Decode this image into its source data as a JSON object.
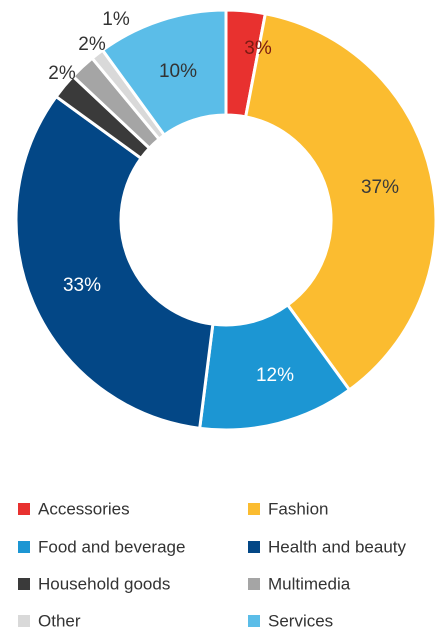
{
  "chart_data": {
    "type": "pie",
    "variant": "donut",
    "categories": [
      "Accessories",
      "Fashion",
      "Food and beverage",
      "Health and beauty",
      "Household goods",
      "Multimedia",
      "Other",
      "Services"
    ],
    "slice_order": [
      "Accessories",
      "Fashion",
      "Food and beverage",
      "Health and beauty",
      "Household goods",
      "Multimedia",
      "Other",
      "Services"
    ],
    "values": [
      3,
      37,
      12,
      33,
      2,
      2,
      1,
      10
    ],
    "value_labels": [
      "3%",
      "37%",
      "12%",
      "33%",
      "2%",
      "2%",
      "1%",
      "10%"
    ],
    "colors": [
      "#e8312f",
      "#fbbc30",
      "#1c96d3",
      "#034786",
      "#3a3a3a",
      "#a5a5a5",
      "#d9d9d9",
      "#5bbde8"
    ],
    "label_colors": [
      "#7a1a12",
      "#3a3a3a",
      "#ffffff",
      "#ffffff",
      "#333333",
      "#333333",
      "#333333",
      "#333333"
    ],
    "legend": {
      "position": "bottom",
      "columns": 2,
      "entries": [
        "Accessories",
        "Fashion",
        "Food and beverage",
        "Health and beauty",
        "Household goods",
        "Multimedia",
        "Other",
        "Services"
      ]
    },
    "start_angle_deg": 0,
    "direction": "clockwise"
  }
}
